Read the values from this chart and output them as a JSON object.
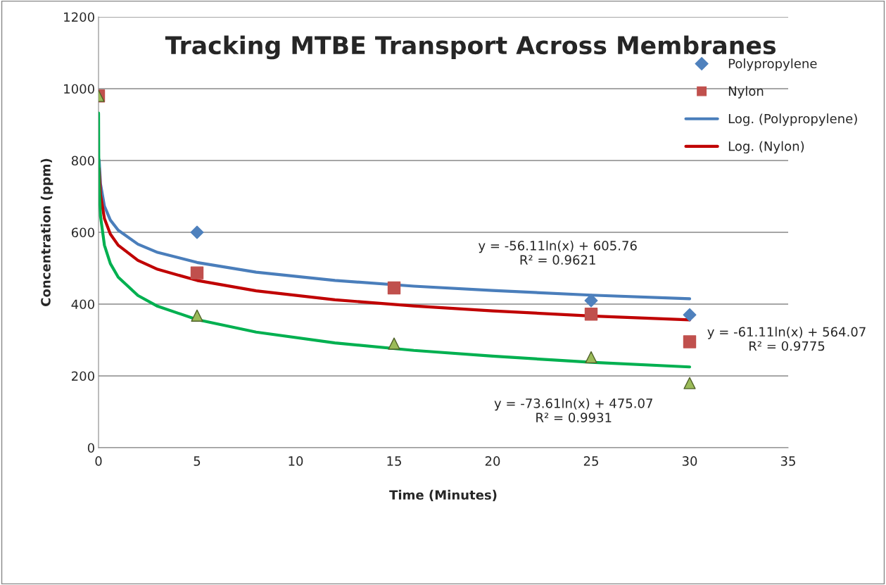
{
  "chart_data": {
    "type": "scatter",
    "title": "Tracking MTBE Transport Across Membranes",
    "xlabel": "Time (Minutes)",
    "ylabel": "Concentration (ppm)",
    "xlim": [
      0,
      35
    ],
    "xticks": [
      0,
      5,
      10,
      15,
      20,
      25,
      30,
      35
    ],
    "ylim": [
      0,
      1200
    ],
    "yticks": [
      0,
      200,
      400,
      600,
      800,
      1000,
      1200
    ],
    "grid": "y",
    "legend": "top right",
    "series": [
      {
        "name": "Polypropylene",
        "marker": "diamond",
        "color": "#4f81bd",
        "x": [
          5,
          25,
          30
        ],
        "values": [
          600,
          410,
          370
        ]
      },
      {
        "name": "Nylon",
        "marker": "square",
        "color": "#c0504d",
        "x": [
          0,
          5,
          15,
          25,
          30
        ],
        "values": [
          980,
          487,
          445,
          372,
          295
        ]
      },
      {
        "marker": "triangle",
        "color": "#9bbb59",
        "x": [
          0,
          5,
          15,
          25,
          30
        ],
        "values": [
          980,
          368,
          290,
          252,
          180
        ]
      },
      {
        "name": "Log. (Polypropylene)",
        "type": "line",
        "color": "#4a7ebb",
        "x": [
          0.03,
          0.1,
          0.3,
          0.6,
          1,
          2,
          3,
          5,
          8,
          12,
          16,
          20,
          25,
          30
        ],
        "values": [
          802,
          735,
          673,
          634,
          606,
          567,
          544,
          516,
          489,
          466,
          450,
          438,
          425,
          415
        ]
      },
      {
        "name": "Log. (Nylon)",
        "type": "line",
        "color": "#c00000",
        "x": [
          0.03,
          0.1,
          0.3,
          0.6,
          1,
          2,
          3,
          5,
          8,
          12,
          16,
          20,
          25,
          30
        ],
        "values": [
          778,
          705,
          638,
          595,
          564,
          522,
          497,
          466,
          437,
          412,
          395,
          381,
          367,
          356
        ]
      },
      {
        "type": "line",
        "color": "#00b050",
        "x": [
          0.002,
          0.01,
          0.03,
          0.1,
          0.3,
          0.6,
          1,
          2,
          3,
          5,
          8,
          12,
          16,
          20,
          25,
          30
        ],
        "values": [
          932,
          814,
          733,
          645,
          564,
          513,
          475,
          424,
          394,
          357,
          322,
          292,
          271,
          255,
          238,
          225
        ]
      }
    ],
    "annotations": [
      "y = -56.11ln(x) + 605.76\nR² = 0.9621",
      "y = -61.11ln(x) + 564.07\nR² = 0.9775",
      "y = -73.61ln(x) + 475.07\nR² = 0.9931"
    ]
  }
}
